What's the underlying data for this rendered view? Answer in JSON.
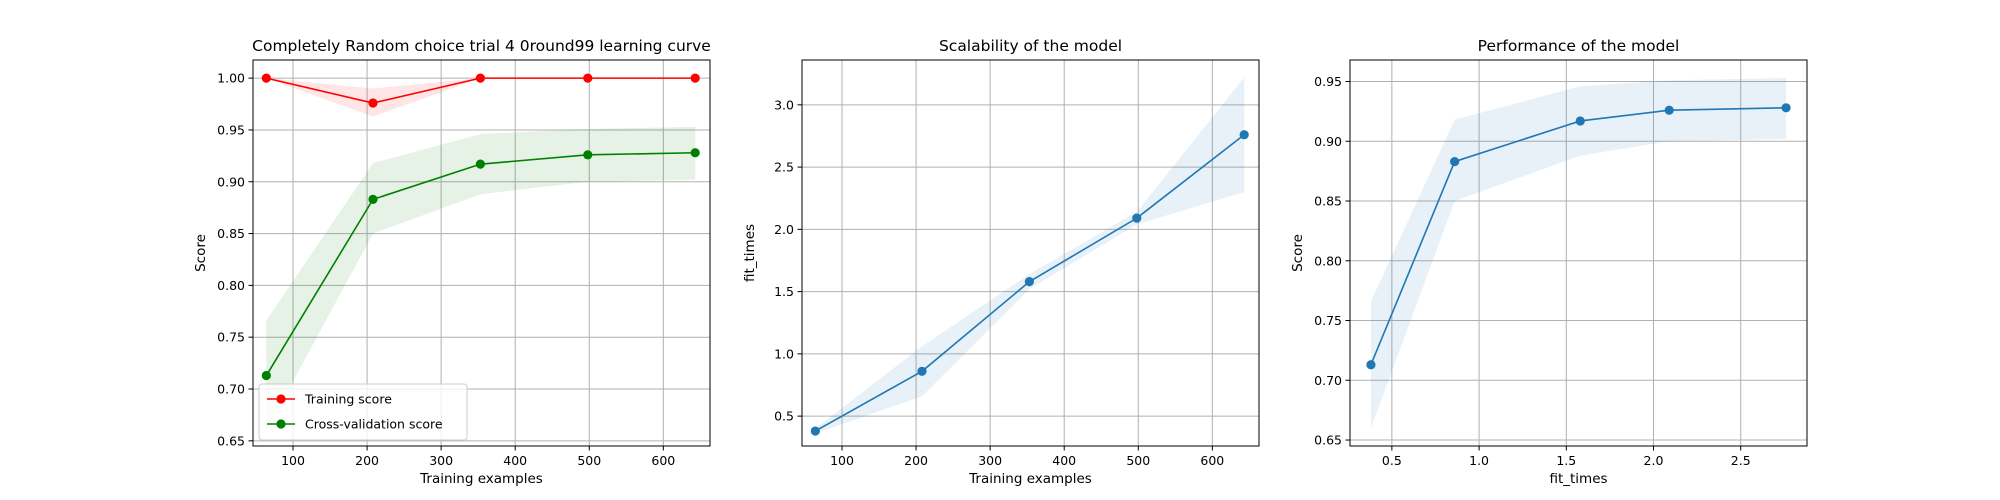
{
  "chart_data": [
    {
      "type": "line",
      "title": "Completely Random choice trial 4 0round99 learning curve",
      "xlabel": "Training examples",
      "ylabel": "Score",
      "xlim": [
        46,
        663
      ],
      "ylim": [
        0.645,
        1.0175
      ],
      "xticks": [
        100,
        200,
        300,
        400,
        500,
        600
      ],
      "xtick_labels": [
        "100",
        "200",
        "300",
        "400",
        "500",
        "600"
      ],
      "yticks": [
        0.65,
        0.7,
        0.75,
        0.8,
        0.85,
        0.9,
        0.95,
        1.0
      ],
      "ytick_labels": [
        "0.65",
        "0.70",
        "0.75",
        "0.80",
        "0.85",
        "0.90",
        "0.95",
        "1.00"
      ],
      "grid": true,
      "legend_position": "lower-left",
      "series": [
        {
          "name": "Training score",
          "color": "#ff0000",
          "band_color": "#ff0000",
          "x": [
            64,
            208,
            353,
            498,
            643
          ],
          "y": [
            1.0,
            0.976,
            1.0,
            1.0,
            1.0
          ],
          "lower": [
            1.0,
            0.963,
            1.0,
            1.0,
            1.0
          ],
          "upper": [
            1.0,
            0.99,
            1.0,
            1.0,
            1.0
          ]
        },
        {
          "name": "Cross-validation score",
          "color": "#008000",
          "band_color": "#008000",
          "x": [
            64,
            208,
            353,
            498,
            643
          ],
          "y": [
            0.713,
            0.883,
            0.917,
            0.926,
            0.928
          ],
          "lower": [
            0.66,
            0.85,
            0.888,
            0.9,
            0.902
          ],
          "upper": [
            0.766,
            0.918,
            0.946,
            0.951,
            0.953
          ]
        }
      ]
    },
    {
      "type": "line",
      "title": "Scalability of the model",
      "xlabel": "Training examples",
      "ylabel": "fit_times",
      "xlim": [
        46,
        663
      ],
      "ylim": [
        0.26,
        3.36
      ],
      "xticks": [
        100,
        200,
        300,
        400,
        500,
        600
      ],
      "xtick_labels": [
        "100",
        "200",
        "300",
        "400",
        "500",
        "600"
      ],
      "yticks": [
        0.5,
        1.0,
        1.5,
        2.0,
        2.5,
        3.0
      ],
      "ytick_labels": [
        "0.5",
        "1.0",
        "1.5",
        "2.0",
        "2.5",
        "3.0"
      ],
      "grid": true,
      "series": [
        {
          "color": "#1f77b4",
          "band_color": "#1f77b4",
          "x": [
            64,
            208,
            353,
            498,
            643
          ],
          "y": [
            0.38,
            0.86,
            1.58,
            2.09,
            2.76
          ],
          "lower": [
            0.36,
            0.66,
            1.52,
            2.04,
            2.3
          ],
          "upper": [
            0.4,
            1.06,
            1.64,
            2.14,
            3.22
          ]
        }
      ]
    },
    {
      "type": "line",
      "title": "Performance of the model",
      "xlabel": "fit_times",
      "ylabel": "Score",
      "xlim": [
        0.26,
        2.88
      ],
      "ylim": [
        0.645,
        0.968
      ],
      "xticks": [
        0.5,
        1.0,
        1.5,
        2.0,
        2.5
      ],
      "xtick_labels": [
        "0.5",
        "1.0",
        "1.5",
        "2.0",
        "2.5"
      ],
      "yticks": [
        0.65,
        0.7,
        0.75,
        0.8,
        0.85,
        0.9,
        0.95
      ],
      "ytick_labels": [
        "0.65",
        "0.70",
        "0.75",
        "0.80",
        "0.85",
        "0.90",
        "0.95"
      ],
      "grid": true,
      "series": [
        {
          "color": "#1f77b4",
          "band_color": "#1f77b4",
          "x": [
            0.38,
            0.86,
            1.58,
            2.09,
            2.76
          ],
          "y": [
            0.713,
            0.883,
            0.917,
            0.926,
            0.928
          ],
          "lower": [
            0.66,
            0.85,
            0.888,
            0.9,
            0.902
          ],
          "upper": [
            0.766,
            0.918,
            0.946,
            0.951,
            0.953
          ]
        }
      ]
    }
  ]
}
